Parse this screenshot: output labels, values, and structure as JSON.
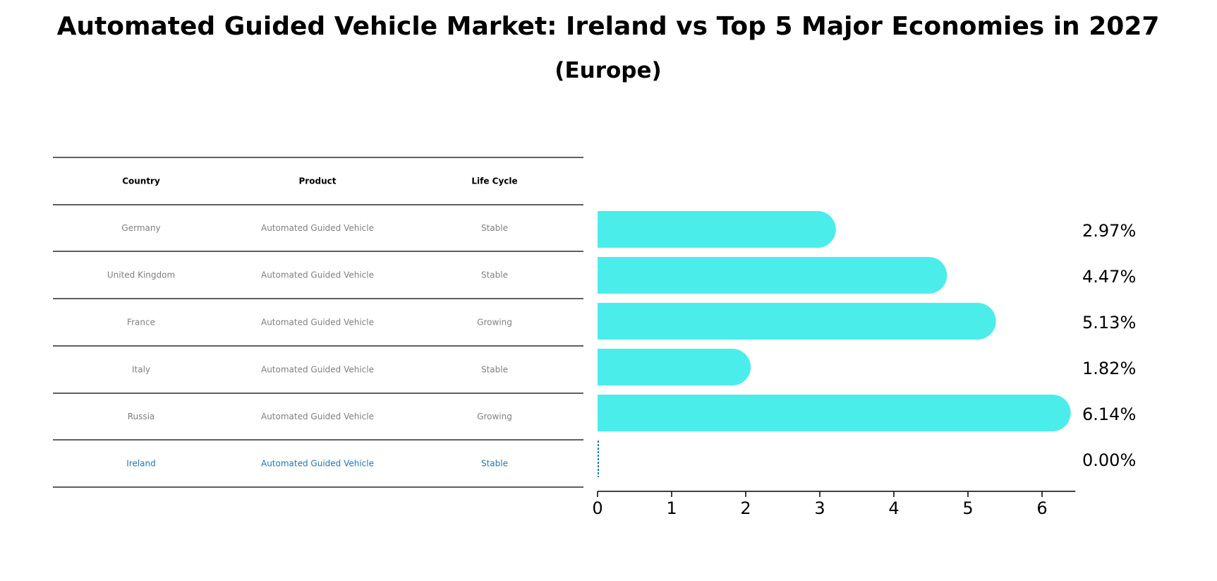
{
  "chart_data": {
    "type": "bar",
    "orientation": "horizontal",
    "title": "Automated Guided Vehicle Market: Ireland vs Top 5 Major Economies in 2027",
    "subtitle": "(Europe)",
    "table": {
      "columns": [
        "Country",
        "Product",
        "Life Cycle"
      ],
      "rows": [
        {
          "country": "Germany",
          "product": "Automated Guided Vehicle",
          "life_cycle": "Stable",
          "highlight": false
        },
        {
          "country": "United Kingdom",
          "product": "Automated Guided Vehicle",
          "life_cycle": "Stable",
          "highlight": false
        },
        {
          "country": "France",
          "product": "Automated Guided Vehicle",
          "life_cycle": "Growing",
          "highlight": false
        },
        {
          "country": "Italy",
          "product": "Automated Guided Vehicle",
          "life_cycle": "Stable",
          "highlight": false
        },
        {
          "country": "Russia",
          "product": "Automated Guided Vehicle",
          "life_cycle": "Growing",
          "highlight": false
        },
        {
          "country": "Ireland",
          "product": "Automated Guided Vehicle",
          "life_cycle": "Stable",
          "highlight": true
        }
      ]
    },
    "categories": [
      "Germany",
      "United Kingdom",
      "France",
      "Italy",
      "Russia",
      "Ireland"
    ],
    "values": [
      2.97,
      4.47,
      5.13,
      1.82,
      6.14,
      0.0
    ],
    "value_labels": [
      "2.97%",
      "4.47%",
      "5.13%",
      "1.82%",
      "6.14%",
      "0.00%"
    ],
    "xlim": [
      0,
      6.45
    ],
    "xticks": [
      0,
      1,
      2,
      3,
      4,
      5,
      6
    ],
    "xtick_labels": [
      "0",
      "1",
      "2",
      "3",
      "4",
      "5",
      "6"
    ],
    "xlabel": "",
    "ylabel": "",
    "grid": false,
    "legend": "none",
    "colors": {
      "bar": "#4bedeb",
      "highlight": "#1f77b4",
      "text_muted": "#808080",
      "line": "#000000"
    }
  }
}
